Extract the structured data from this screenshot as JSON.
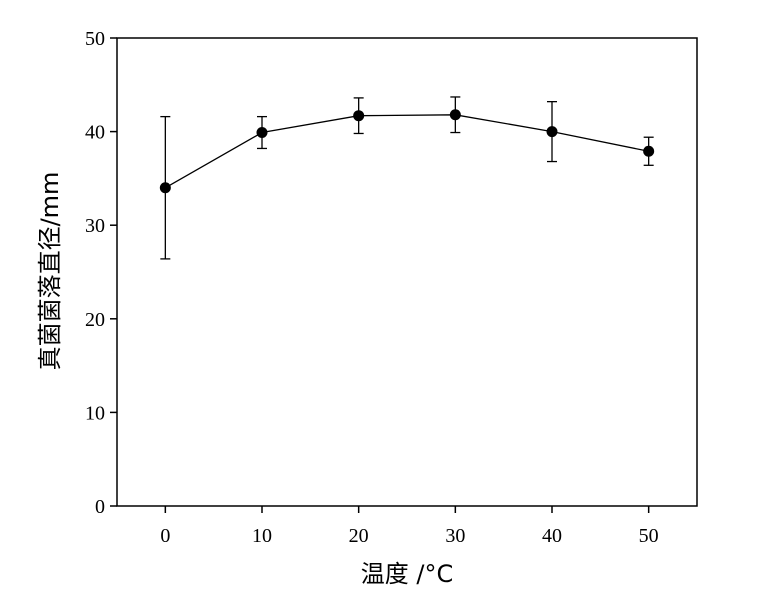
{
  "chart_data": {
    "type": "line",
    "title": "",
    "xlabel": "温度 /°C",
    "ylabel": "真菌菌落直径/mm",
    "xlim": [
      -5,
      55
    ],
    "ylim": [
      0,
      50
    ],
    "x_ticks": [
      0,
      10,
      20,
      30,
      40,
      50
    ],
    "y_ticks": [
      0,
      10,
      20,
      30,
      40,
      50
    ],
    "grid": false,
    "legend": "none",
    "series": [
      {
        "x": [
          0,
          10,
          20,
          30,
          40,
          50
        ],
        "y": [
          34.0,
          39.9,
          41.7,
          41.8,
          40.0,
          37.9
        ],
        "error": [
          7.6,
          1.7,
          1.9,
          1.9,
          3.2,
          1.5
        ],
        "color": "#000000",
        "marker": "filled-circle"
      }
    ]
  }
}
